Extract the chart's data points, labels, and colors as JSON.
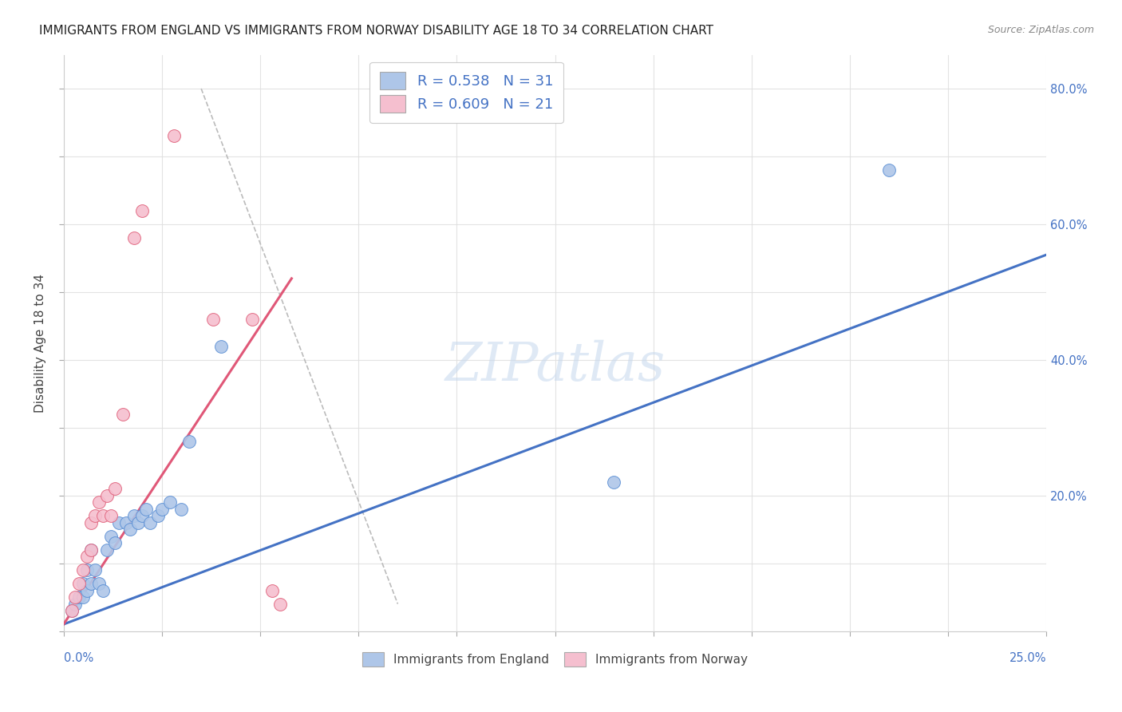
{
  "title": "IMMIGRANTS FROM ENGLAND VS IMMIGRANTS FROM NORWAY DISABILITY AGE 18 TO 34 CORRELATION CHART",
  "source": "Source: ZipAtlas.com",
  "ylabel": "Disability Age 18 to 34",
  "xlim": [
    0.0,
    0.25
  ],
  "ylim": [
    0.0,
    0.85
  ],
  "england_color": "#aec6e8",
  "england_edge_color": "#5b8fd4",
  "england_line_color": "#4472c4",
  "norway_color": "#f5bfcf",
  "norway_edge_color": "#e0607a",
  "norway_line_color": "#e05878",
  "england_scatter_x": [
    0.002,
    0.003,
    0.004,
    0.005,
    0.005,
    0.006,
    0.006,
    0.007,
    0.007,
    0.008,
    0.009,
    0.01,
    0.011,
    0.012,
    0.013,
    0.014,
    0.016,
    0.017,
    0.018,
    0.019,
    0.02,
    0.021,
    0.022,
    0.024,
    0.025,
    0.027,
    0.03,
    0.032,
    0.04,
    0.14,
    0.21
  ],
  "england_scatter_y": [
    0.03,
    0.04,
    0.05,
    0.05,
    0.07,
    0.06,
    0.09,
    0.07,
    0.12,
    0.09,
    0.07,
    0.06,
    0.12,
    0.14,
    0.13,
    0.16,
    0.16,
    0.15,
    0.17,
    0.16,
    0.17,
    0.18,
    0.16,
    0.17,
    0.18,
    0.19,
    0.18,
    0.28,
    0.42,
    0.22,
    0.68
  ],
  "norway_scatter_x": [
    0.002,
    0.003,
    0.004,
    0.005,
    0.006,
    0.007,
    0.007,
    0.008,
    0.009,
    0.01,
    0.011,
    0.012,
    0.013,
    0.015,
    0.018,
    0.02,
    0.028,
    0.038,
    0.048,
    0.053,
    0.055
  ],
  "norway_scatter_y": [
    0.03,
    0.05,
    0.07,
    0.09,
    0.11,
    0.12,
    0.16,
    0.17,
    0.19,
    0.17,
    0.2,
    0.17,
    0.21,
    0.32,
    0.58,
    0.62,
    0.73,
    0.46,
    0.46,
    0.06,
    0.04
  ],
  "england_line_x": [
    0.0,
    0.25
  ],
  "england_line_y": [
    0.01,
    0.555
  ],
  "norway_line_x": [
    0.0,
    0.058
  ],
  "norway_line_y": [
    0.01,
    0.52
  ],
  "diag_line_x": [
    0.035,
    0.085
  ],
  "diag_line_y": [
    0.8,
    0.04
  ],
  "watermark_text": "ZIPatlas",
  "legend1_label": "R = 0.538   N = 31",
  "legend2_label": "R = 0.609   N = 21",
  "bottom_legend1": "Immigrants from England",
  "bottom_legend2": "Immigrants from Norway",
  "x_left_label": "0.0%",
  "x_right_label": "25.0%",
  "right_yticks": [
    0.2,
    0.4,
    0.6,
    0.8
  ],
  "right_yticklabels": [
    "20.0%",
    "40.0%",
    "60.0%",
    "80.0%"
  ],
  "grid_color": "#e0e0e0",
  "title_fontsize": 11,
  "source_fontsize": 9
}
